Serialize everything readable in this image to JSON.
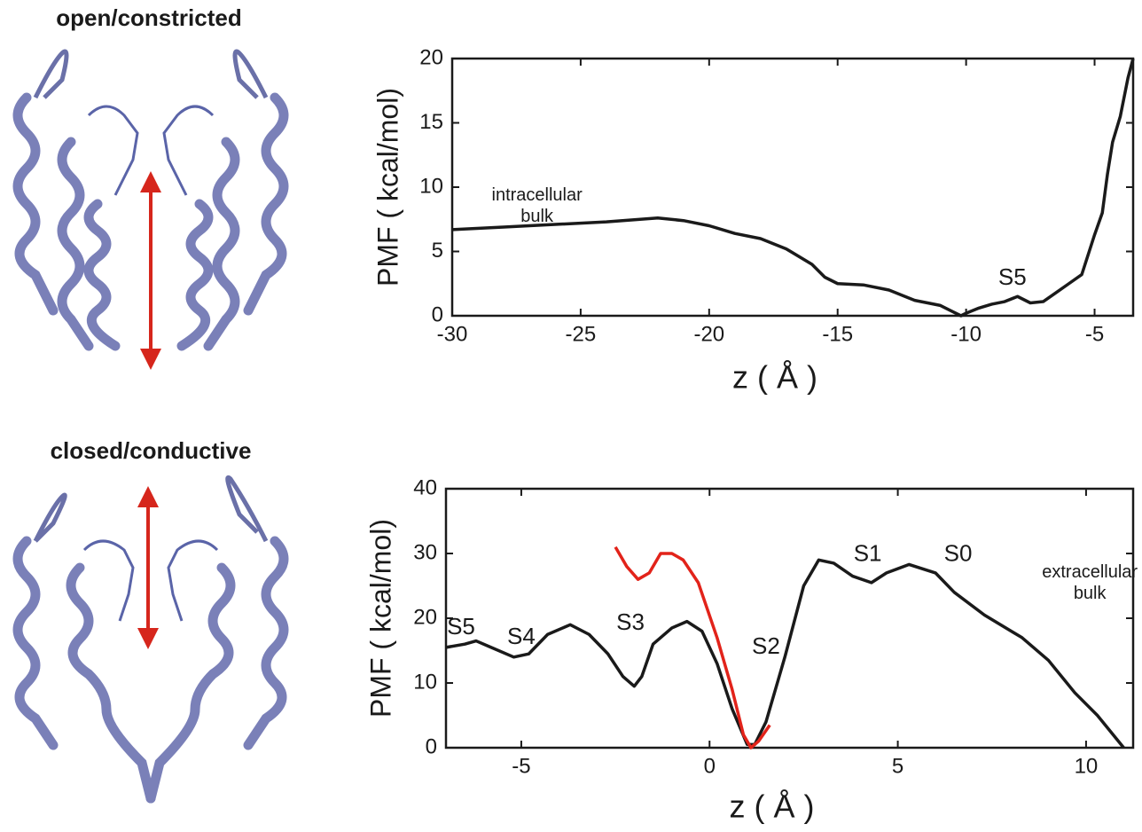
{
  "panels": [
    {
      "label": "open/constricted"
    },
    {
      "label": "closed/conductive"
    }
  ],
  "chart_data": [
    {
      "type": "line",
      "x_label": "z ( Å )",
      "y_label": "PMF ( kcal/mol)",
      "xlim": [
        -30,
        -3.5
      ],
      "ylim": [
        0,
        20
      ],
      "xticks": [
        -30,
        -25,
        -20,
        -15,
        -10,
        -5
      ],
      "yticks": [
        0,
        5,
        10,
        15,
        20
      ],
      "series": [
        {
          "color": "#1a1a1a",
          "x": [
            -30,
            -28,
            -26,
            -24,
            -22,
            -21,
            -20,
            -19,
            -18,
            -17,
            -16,
            -15.5,
            -15,
            -14,
            -13,
            -12,
            -11,
            -10.5,
            -10.2,
            -10,
            -9.5,
            -9,
            -8.5,
            -8,
            -7.5,
            -7,
            -6.5,
            -6,
            -5.5,
            -5,
            -4.7,
            -4.5,
            -4.3,
            -4,
            -3.7,
            -3.5
          ],
          "values": [
            6.7,
            6.9,
            7.1,
            7.3,
            7.6,
            7.4,
            7.0,
            6.4,
            6.0,
            5.2,
            4.0,
            3.0,
            2.5,
            2.4,
            2.0,
            1.2,
            0.8,
            0.3,
            0,
            0.2,
            0.6,
            0.9,
            1.1,
            1.5,
            1.0,
            1.1,
            1.8,
            2.5,
            3.2,
            6.3,
            8,
            11,
            13.5,
            15.5,
            18.5,
            20
          ]
        }
      ],
      "annotations": [
        {
          "text": [
            "intracellular",
            "bulk"
          ]
        },
        {
          "text": [
            "S5"
          ]
        }
      ]
    },
    {
      "type": "line",
      "x_label": "z ( Å )",
      "y_label": "PMF ( kcal/mol)",
      "xlim": [
        -7,
        11.25
      ],
      "ylim": [
        0,
        40
      ],
      "xticks": [
        -5,
        0,
        5,
        10
      ],
      "yticks": [
        0,
        10,
        20,
        30,
        40
      ],
      "series": [
        {
          "color": "#1a1a1a",
          "x": [
            -7,
            -6.5,
            -6.2,
            -5.8,
            -5.2,
            -4.8,
            -4.3,
            -3.7,
            -3.2,
            -2.7,
            -2.3,
            -2,
            -1.8,
            -1.5,
            -1,
            -0.6,
            -0.2,
            0.2,
            0.6,
            1.0,
            1.2,
            1.5,
            2,
            2.5,
            2.9,
            3.3,
            3.8,
            4.3,
            4.7,
            5.3,
            6.0,
            6.5,
            7.3,
            8.3,
            9,
            9.7,
            10.3,
            11
          ],
          "values": [
            15.5,
            16,
            16.5,
            15.5,
            14,
            14.5,
            17.5,
            19,
            17.5,
            14.5,
            11,
            9.5,
            11,
            16,
            18.5,
            19.5,
            18,
            13,
            6,
            0.5,
            0.5,
            4,
            14,
            25,
            29,
            28.5,
            26.5,
            25.5,
            27,
            28.3,
            27,
            24,
            20.5,
            17,
            13.5,
            8.5,
            5,
            0
          ]
        },
        {
          "color": "#e2231a",
          "x": [
            -2.5,
            -2.2,
            -1.9,
            -1.6,
            -1.3,
            -1.0,
            -0.7,
            -0.3,
            0.2,
            0.6,
            0.9,
            1.1,
            1.3,
            1.6
          ],
          "values": [
            31,
            28,
            26,
            27,
            30,
            30,
            29,
            25.5,
            17,
            9,
            2,
            0,
            1,
            3.5
          ]
        }
      ],
      "annotations": [
        {
          "text": [
            "S5"
          ]
        },
        {
          "text": [
            "S4"
          ]
        },
        {
          "text": [
            "S3"
          ]
        },
        {
          "text": [
            "S2"
          ]
        },
        {
          "text": [
            "S1"
          ]
        },
        {
          "text": [
            "S0"
          ]
        },
        {
          "text": [
            "extracellular",
            "bulk"
          ]
        }
      ]
    }
  ]
}
